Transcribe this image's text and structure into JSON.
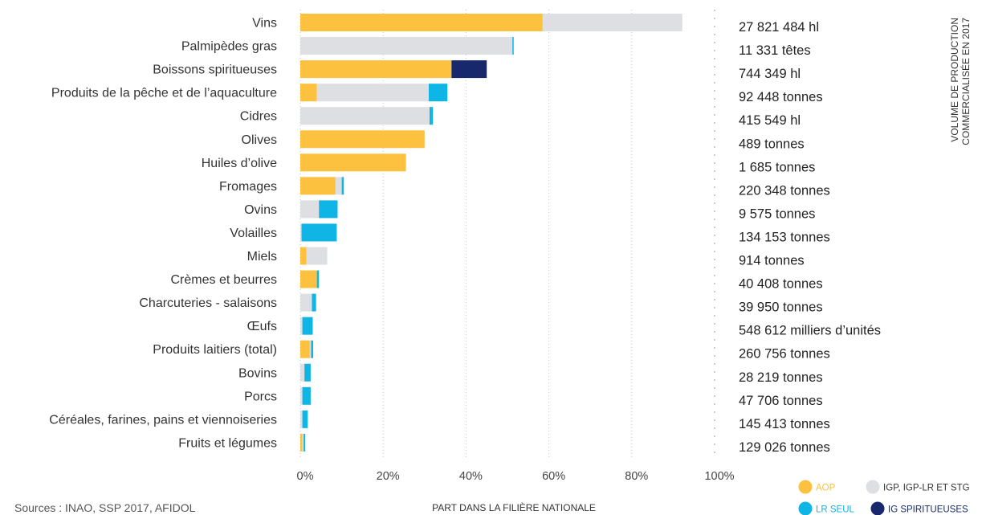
{
  "chart_data": {
    "type": "bar",
    "orientation": "horizontal",
    "stacked": true,
    "xlabel": "PART DANS LA FILIÈRE NATIONALE",
    "right_axis_title": "VOLUME DE PRODUCTION COMMERCIALISÉE EN 2017",
    "right_axis_title_lines": [
      "VOLUME DE PRODUCTION",
      "COMMERCIALISÉE EN 2017"
    ],
    "xlim": [
      0,
      100
    ],
    "x_ticks": [
      "0%",
      "20%",
      "40%",
      "60%",
      "80%",
      "100%"
    ],
    "grid": true,
    "legend_position": "bottom-right",
    "source": "Sources : INAO, SSP 2017, AFIDOL",
    "categories": [
      "Vins",
      "Palmipèdes gras",
      "Boissons spiritueuses",
      "Produits de la pêche et de l’aquaculture",
      "Cidres",
      "Olives",
      "Huiles d’olive",
      "Fromages",
      "Ovins",
      "Volailles",
      "Miels",
      "Crèmes et beurres",
      "Charcuteries - salaisons",
      "Œufs",
      "Produits laitiers (total)",
      "Bovins",
      "Porcs",
      "Céréales, farines, pains et viennoiseries",
      "Fruits et légumes"
    ],
    "volumes": [
      "27 821 484 hl",
      "11 331 têtes",
      "744 349 hl",
      "92 448 tonnes",
      "415 549 hl",
      "489 tonnes",
      "1 685 tonnes",
      "220 348 tonnes",
      "9 575 tonnes",
      "134 153 tonnes",
      "914 tonnes",
      "40 408 tonnes",
      "39 950 tonnes",
      "548 612 milliers d’unités",
      "260 756 tonnes",
      "28 219 tonnes",
      "47 706 tonnes",
      "145 413 tonnes",
      "129 026 tonnes"
    ],
    "series": [
      {
        "name": "AOP",
        "color": "#FCC13F",
        "values": [
          58.5,
          0,
          36.5,
          4,
          0,
          30,
          25.5,
          8.5,
          0,
          0,
          1.5,
          4,
          0,
          0,
          2.3,
          0,
          0,
          0,
          0.5
        ]
      },
      {
        "name": "IGP, IGP-LR ET STG",
        "color": "#DEDFE2",
        "values": [
          33.7,
          51.2,
          0,
          27,
          31.2,
          0,
          0,
          1.5,
          4.5,
          0.3,
          5,
          0,
          2.8,
          0.5,
          0.3,
          1,
          0.5,
          0.5,
          0.3
        ]
      },
      {
        "name": "LR SEUL",
        "color": "#0FB5E5",
        "values": [
          0,
          0.3,
          0,
          4.5,
          0.8,
          0,
          0,
          0.5,
          4.5,
          8.5,
          0,
          0.5,
          1,
          2.5,
          0.5,
          1.5,
          2,
          1.3,
          0.4
        ]
      },
      {
        "name": "IG SPIRITUEUSES",
        "color": "#17286D",
        "values": [
          0,
          0,
          8.5,
          0,
          0,
          0,
          0,
          0,
          0,
          0,
          0,
          0,
          0,
          0,
          0,
          0,
          0,
          0,
          0
        ]
      }
    ]
  }
}
